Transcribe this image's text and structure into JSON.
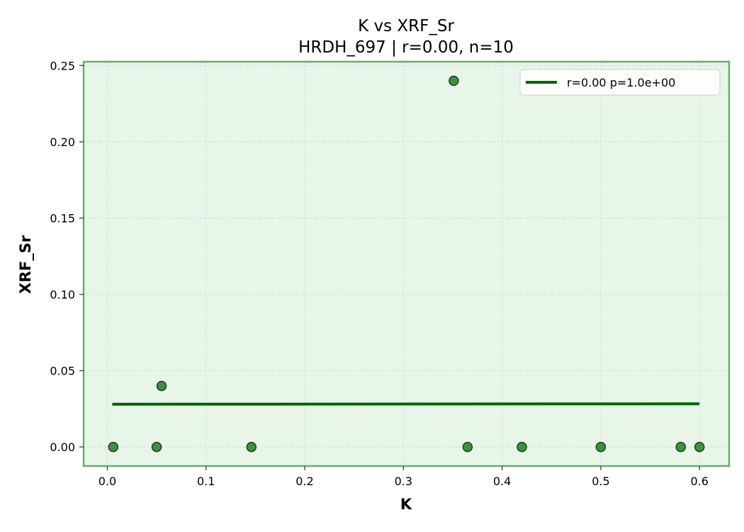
{
  "chart_data": {
    "type": "scatter",
    "title": "K vs XRF_Sr",
    "subtitle": "HRDH_697 | r=0.00, n=10",
    "xlabel": "K",
    "ylabel": "XRF_Sr",
    "xlim": [
      -0.024,
      0.63
    ],
    "ylim": [
      -0.0125,
      0.2525
    ],
    "xticks": [
      0.0,
      0.1,
      0.2,
      0.3,
      0.4,
      0.5,
      0.6
    ],
    "xtick_labels": [
      "0.0",
      "0.1",
      "0.2",
      "0.3",
      "0.4",
      "0.5",
      "0.6"
    ],
    "yticks": [
      0.0,
      0.05,
      0.1,
      0.15,
      0.2,
      0.25
    ],
    "ytick_labels": [
      "0.00",
      "0.05",
      "0.10",
      "0.15",
      "0.20",
      "0.25"
    ],
    "grid": true,
    "legend_position": "top-right",
    "series": [
      {
        "kind": "points",
        "x": [
          0.006,
          0.05,
          0.055,
          0.146,
          0.351,
          0.365,
          0.42,
          0.5,
          0.581,
          0.6
        ],
        "y": [
          0.0,
          0.0,
          0.04,
          0.0,
          0.24,
          0.0,
          0.0,
          0.0,
          0.0,
          0.0
        ],
        "color": "#2e7d32"
      },
      {
        "kind": "line",
        "name": "r=0.00  p=1.0e+00",
        "x": [
          0.005,
          0.6
        ],
        "y": [
          0.028,
          0.0283
        ],
        "color": "#006400"
      }
    ],
    "colors": {
      "plot_background": "#e8f5e9",
      "frame": "#6aaa6e",
      "grid": "#c8d4c8",
      "marker_fill": "#3f8f43",
      "marker_edge": "#1f3a20",
      "fit_line": "#006400"
    }
  }
}
